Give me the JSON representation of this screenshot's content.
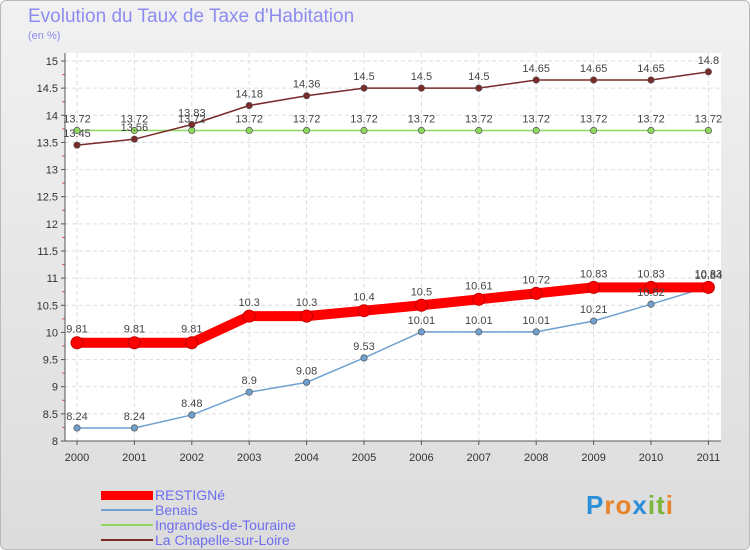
{
  "title": "Evolution du Taux de Taxe d'Habitation",
  "subtitle": "(en %)",
  "logo": {
    "letters": [
      "P",
      "r",
      "o",
      "x",
      "i",
      "t",
      "i"
    ],
    "colors": [
      "#2a8fd8",
      "#e8832a",
      "#e8832a",
      "#2a8fd8",
      "#7ab43a",
      "#7ab43a",
      "#e8832a"
    ]
  },
  "chart_data": {
    "type": "line",
    "x": [
      "2000",
      "2001",
      "2002",
      "2003",
      "2004",
      "2005",
      "2006",
      "2007",
      "2008",
      "2009",
      "2010",
      "2011"
    ],
    "ylim": [
      8,
      15
    ],
    "yticks": [
      "8",
      "8.5",
      "9",
      "9.5",
      "10",
      "10.5",
      "11",
      "11.5",
      "12",
      "12.5",
      "13",
      "13.5",
      "14",
      "14.5",
      "15"
    ],
    "grid": true,
    "legend_position": "bottom-left",
    "series": [
      {
        "name": "RESTIGNé",
        "color": "#ff0000",
        "values": [
          9.81,
          9.81,
          9.81,
          10.3,
          10.3,
          10.4,
          10.5,
          10.61,
          10.72,
          10.83,
          10.83,
          10.83
        ],
        "labels": [
          "9.81",
          "9.81",
          "9.81",
          "10.3",
          "10.3",
          "10.4",
          "10.5",
          "10.61",
          "10.72",
          "10.83",
          "10.83",
          "10.83"
        ]
      },
      {
        "name": "Benais",
        "color": "#6fa0d0",
        "values": [
          8.24,
          8.24,
          8.48,
          8.9,
          9.08,
          9.53,
          10.01,
          10.01,
          10.01,
          10.21,
          10.52,
          10.84
        ],
        "labels": [
          "8.24",
          "8.24",
          "8.48",
          "8.9",
          "9.08",
          "9.53",
          "10.01",
          "10.01",
          "10.01",
          "10.21",
          "10.52",
          "10.84"
        ]
      },
      {
        "name": "Ingrandes-de-Touraine",
        "color": "#8fd860",
        "values": [
          13.72,
          13.72,
          13.72,
          13.72,
          13.72,
          13.72,
          13.72,
          13.72,
          13.72,
          13.72,
          13.72,
          13.72
        ],
        "labels": [
          "13.72",
          "13.72",
          "13.72",
          "13.72",
          "13.72",
          "13.72",
          "13.72",
          "13.72",
          "13.72",
          "13.72",
          "13.72",
          "13.72"
        ]
      },
      {
        "name": "La Chapelle-sur-Loire",
        "color": "#7a2a2a",
        "values": [
          13.45,
          13.56,
          13.83,
          14.18,
          14.36,
          14.5,
          14.5,
          14.5,
          14.65,
          14.65,
          14.65,
          14.8
        ],
        "labels": [
          "13.45",
          "13.56",
          "13.83",
          "14.18",
          "14.36",
          "14.5",
          "14.5",
          "14.5",
          "14.65",
          "14.65",
          "14.65",
          "14.8"
        ]
      }
    ]
  }
}
